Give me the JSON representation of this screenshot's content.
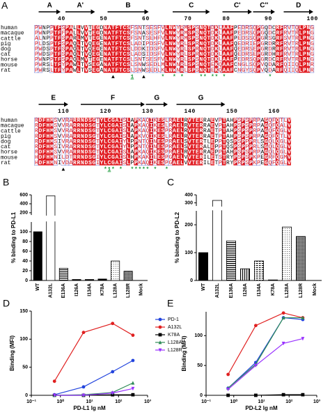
{
  "figure": {
    "panel_labels": [
      "A",
      "B",
      "C",
      "D",
      "E"
    ]
  },
  "alignment": {
    "species": [
      "human",
      "macaque",
      "cattle",
      "pig",
      "dog",
      "cat",
      "horse",
      "mouse",
      "rat"
    ],
    "blocks": [
      {
        "ruler": "      40         50         60         70        80         90         100",
        "structure": [
          {
            "label": "A",
            "from": 1,
            "to": 6
          },
          {
            "label": "A'",
            "from": 8,
            "to": 15
          },
          {
            "label": "B",
            "from": 19,
            "to": 29
          },
          {
            "label": "C",
            "from": 36,
            "to": 45
          },
          {
            "label": "C'",
            "from": 49,
            "to": 56
          },
          {
            "label": "C''",
            "from": 57,
            "to": 62
          },
          {
            "label": "D",
            "from": 65,
            "to": 72
          }
        ],
        "sequences": [
          "PWNPPTFSPALLVVTEGDNATFTCSFSNTSESFVLNWYRMSPSNQTDKLAAFPEDRSQPGQDCRFRVTQLPNG",
          "PWNPPTFFPALLVVTEGDNATFTCSFSNASESFVLNWYRMSPSNQTDKLAAFPEDRSQPGQDCRFRVTRLPNG",
          "ALNPPTFSPARLMVTEGENATFTCSFSNTSEHFVLNWYRMSPSNQTDKLAAFPEDSSQPGRSGRFSVTRLPNG",
          "PLDSPTFSPAQLTVQEGENATFTCSLADIPDSFVLNWYRLSPRNQTDKLAAFQEDRIEPGRDRRFRVTRLPNG",
          "PWDSPTFSPAQLTVQEGENATFTCSLDDKIDSFVLNWYRLSPRNQTDKLAAFQEDRSEPGRDRRFRVTRLPNG",
          "PWDSPTFSPAQLTVQEGENATFTCSLADSIDSFVLNWYRLSPRNQTDKLAAFQEDRSEPGRDHRFRVTRLPNG",
          "PWNPPTFSPAQLMVTEGENATFTCSLSNTSESFVLNWYRLSPSNQTDKLAAFPEDRSQPGRDCRFRVTRLPNG",
          "PWRSLTFYPAWLTVSEGANATFTCSLSNWSEDLMLNWNRLSPSNQTEKQAAFCNGLSQPVQDARFQIIQLPNR",
          "PWRSLTFYPAWLTVSEGANATFTCSLSNWSEDLKLNWNRLSPSNQTEKQAAFCNGYSQPVQDARFQIIQLPNR"
        ],
        "annotations": "                    ▲    1  ▲    *  * *    ** ** *           *"
      },
      {
        "ruler": "      110        120        130        140        150        160",
        "structure": [
          {
            "label": "E",
            "from": 1,
            "to": 8
          },
          {
            "label": "F",
            "from": 12,
            "to": 28
          },
          {
            "label": "G",
            "from": 29,
            "to": 34
          },
          {
            "label": "G",
            "from": 37,
            "to": 49
          }
        ],
        "sequences": [
          "RDFHMSVVRARRNDSGTYLCGAISLAPKAQIKESLRAELRVTERRAEVPTAHPSPSPRPAGQFQTLV",
          "RDFHMSVVRARRNDSGTYLCGAISLAPKAQIKESLRAELRVTERRAEVPTAHPSPSPRPAGQFQALV",
          "RDFHMSVVRARRNDSGTYLCGAISLAPKAQIKESPRAELRVTERRAETPTAHPSPSPRPAGQFQGLV",
          "RDFHMSVVRARRNDSGTYLCGAISLAPKVQIKESLRAELRVTERRAETPTAHPSPSPRPAGQFQTLV",
          "RDFHMSIVRARRNDSGTYLCGAIYLPPNTQINESPRAELSVTERTLEPPTQSPSPPPRLSGQLQGLV",
          "RDFHMSIVRARRNDSGTYLCGAIYLPPNTQINESPRAELSVTERALEPPTQSPSPPPRLSGQLQGLV",
          "RDFHMSVVRARRNDSGTYLCGAISLAPKAQIKESPRAELRVTERRAEPPTAHPSPSPRPAGQLQGLV",
          "HDFHMNILDTRRNDSGIYLCGAISLHPKAKIEESPGAELVVTERILETSTRYPSPSPKPEGRFQGMV",
          "HDFHMNIVDARRNDSGIYLCGAISLPPKAQIKESPGAELVVTERILETPTRYPRPSPKPEGQFQGLV"
        ],
        "annotations": "       ▲          *1* *  ***** *  *"
      }
    ]
  },
  "chart_data": [
    {
      "type": "bar",
      "ylabel": "% binding to PD-L1",
      "categories": [
        "WT",
        "A132L",
        "E136A",
        "I126A",
        "I134A",
        "K78A",
        "L128A",
        "L128R",
        "Mock"
      ],
      "values": [
        100,
        580,
        25,
        2,
        2,
        3,
        40,
        19,
        0
      ],
      "bar_styles": [
        "solid",
        "outline",
        "hstripe",
        "solid",
        "solid",
        "solid",
        "dots",
        "dense",
        "solid"
      ],
      "color": "#000000",
      "ylim": [
        0,
        600
      ],
      "ybreak": [
        120,
        150
      ],
      "yticks": [
        0,
        20,
        40,
        60,
        80,
        100,
        200,
        400,
        600
      ]
    },
    {
      "type": "bar",
      "ylabel": "% binding to PD-L2",
      "categories": [
        "WT",
        "A132L",
        "E136A",
        "I126A",
        "I134A",
        "K78A",
        "L128A",
        "L128R",
        "Mock"
      ],
      "values": [
        100,
        330,
        142,
        42,
        70,
        2,
        192,
        158,
        0
      ],
      "bar_styles": [
        "solid",
        "outline",
        "hstripe",
        "vstripe",
        "hdash",
        "solid",
        "dots",
        "dense",
        "solid"
      ],
      "color": "#000000",
      "ylim": [
        0,
        400
      ],
      "ybreak": [
        250,
        260
      ],
      "yticks": [
        0,
        100,
        200,
        300,
        400
      ]
    },
    {
      "type": "line",
      "xlabel": "PD-L1 lg nM",
      "ylabel": "Binding (MFI)",
      "log_x": true,
      "legend": "right",
      "x": [
        0.625,
        6.25,
        62.5,
        312.5
      ],
      "series": [
        {
          "name": "PD-1",
          "color": "#2244dd",
          "marker": "circle",
          "values": [
            1,
            15,
            42,
            62
          ]
        },
        {
          "name": "A132L",
          "color": "#e02020",
          "marker": "circle",
          "values": [
            25,
            112,
            128,
            107
          ]
        },
        {
          "name": "K78A",
          "color": "#000000",
          "marker": "square",
          "values": [
            0,
            0,
            1,
            1
          ]
        },
        {
          "name": "L128A",
          "color": "#2e8b57",
          "marker": "triangle",
          "values": [
            0,
            1,
            5,
            22
          ]
        },
        {
          "name": "L128R",
          "color": "#9933ff",
          "marker": "triangle-down",
          "values": [
            0,
            0,
            4,
            12
          ]
        }
      ],
      "xlim": [
        0.1,
        1000
      ],
      "xticks": [
        {
          "value": 0.1,
          "label": "10⁻¹"
        },
        {
          "value": 1,
          "label": "10⁰"
        },
        {
          "value": 10,
          "label": "10¹"
        },
        {
          "value": 100,
          "label": "10²"
        },
        {
          "value": 1000,
          "label": "10³"
        }
      ],
      "ylim": [
        0,
        150
      ],
      "yticks": [
        0,
        50,
        100,
        150
      ]
    },
    {
      "type": "line",
      "xlabel": "PD-L2 lg nM",
      "ylabel": "Binding (MFI)",
      "log_x": true,
      "x": [
        0.625,
        6.25,
        62.5,
        312.5
      ],
      "series": [
        {
          "name": "PD-1",
          "color": "#2244dd",
          "marker": "circle",
          "values": [
            12,
            55,
            130,
            127
          ]
        },
        {
          "name": "A132L",
          "color": "#e02020",
          "marker": "circle",
          "values": [
            35,
            117,
            138,
            130
          ]
        },
        {
          "name": "K78A",
          "color": "#000000",
          "marker": "square",
          "values": [
            0,
            0,
            1,
            1
          ]
        },
        {
          "name": "L128A",
          "color": "#2e8b57",
          "marker": "triangle",
          "values": [
            12,
            52,
            130,
            130
          ]
        },
        {
          "name": "L128R",
          "color": "#9933ff",
          "marker": "triangle-down",
          "values": [
            10,
            50,
            87,
            95
          ]
        }
      ],
      "xlim": [
        0.1,
        1000
      ],
      "xticks": [
        {
          "value": 0.1,
          "label": "10⁻¹"
        },
        {
          "value": 1,
          "label": "10⁰"
        },
        {
          "value": 10,
          "label": "10¹"
        },
        {
          "value": 100,
          "label": "10²"
        },
        {
          "value": 1000,
          "label": "10³"
        }
      ],
      "ylim": [
        0,
        140
      ],
      "yticks": [
        0,
        50,
        100
      ]
    }
  ]
}
